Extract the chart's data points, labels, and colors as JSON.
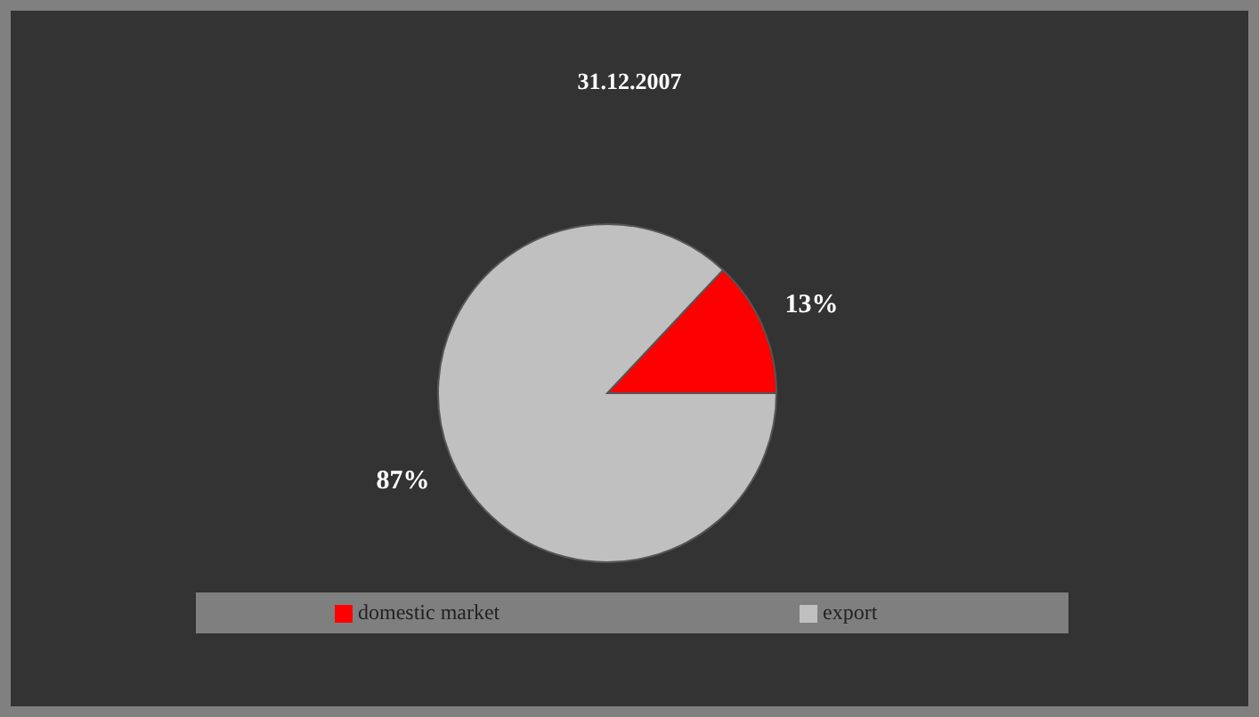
{
  "chart_data": {
    "type": "pie",
    "title": "31.12.2007",
    "categories": [
      "domestic market",
      "export"
    ],
    "values": [
      13,
      87
    ],
    "colors": [
      "#ff0000",
      "#c0c0c0"
    ],
    "value_labels": [
      "13%",
      "87%"
    ],
    "legend": "bottom"
  }
}
